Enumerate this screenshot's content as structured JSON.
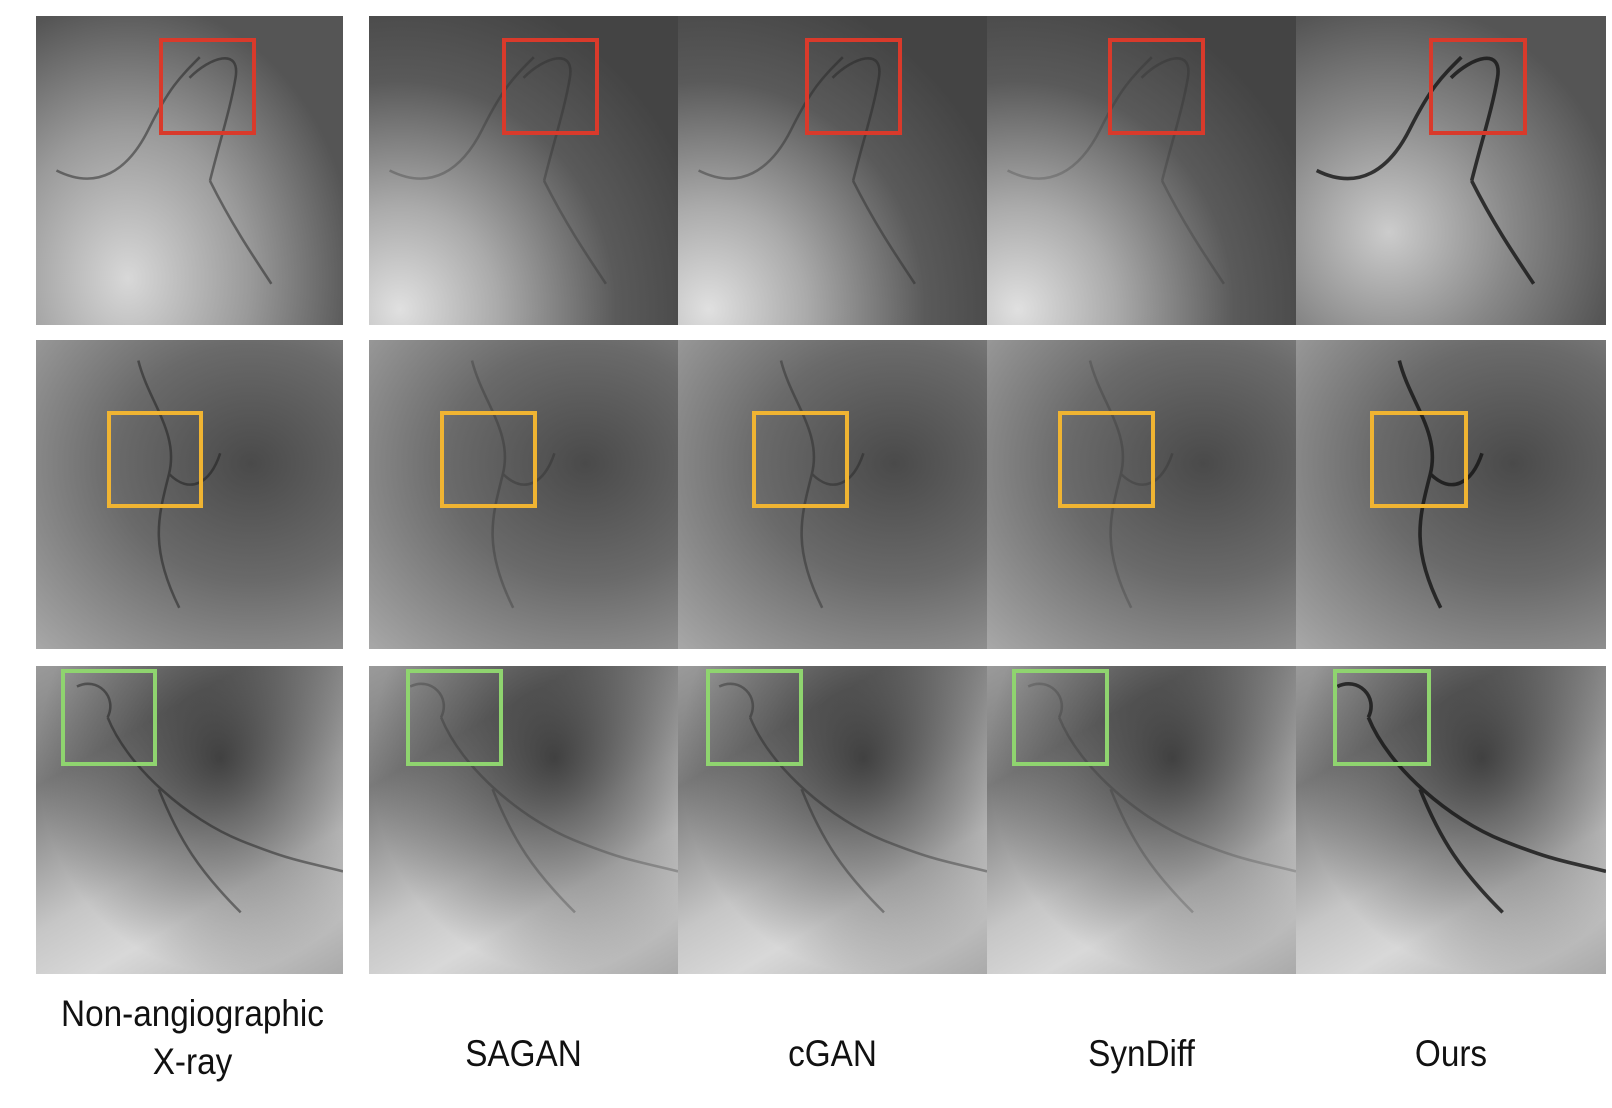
{
  "figure": {
    "columns": [
      {
        "label": "Non-angiographic X-ray"
      },
      {
        "label": "SAGAN"
      },
      {
        "label": "cGAN"
      },
      {
        "label": "SynDiff"
      },
      {
        "label": "Ours"
      }
    ],
    "rows": [
      {
        "box_color": "#d93a2b"
      },
      {
        "box_color": "#f0b432"
      },
      {
        "box_color": "#8fd46f"
      }
    ]
  }
}
